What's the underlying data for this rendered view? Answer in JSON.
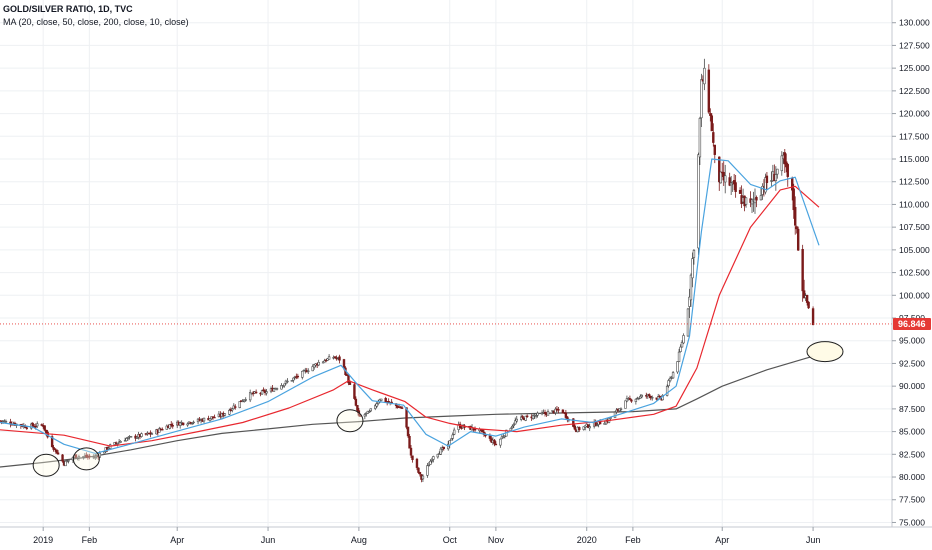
{
  "legend": {
    "title": "GOLD/SILVER RATIO, 1D, TVC",
    "ma_label": "MA (20, close, 50, close, 200, close, 10, close)"
  },
  "colors": {
    "candle_up": "#4a4a4a",
    "candle_down": "#7a1a1a",
    "ma20": "#4aa3df",
    "ma50": "#e8282f",
    "ma200": "#555555",
    "price_line": "#e53935",
    "price_badge": "#e53935",
    "circle_stroke": "#1f1f1f",
    "circle_fill": "#fffbe6",
    "grid": "#eef0f3"
  },
  "chart_data": {
    "type": "line",
    "title": "GOLD/SILVER RATIO, 1D, TVC",
    "ylim": [
      74.5,
      132.5
    ],
    "y_ticks": [
      "75.000",
      "77.500",
      "80.000",
      "82.500",
      "85.000",
      "87.500",
      "90.000",
      "92.500",
      "95.000",
      "97.500",
      "100.000",
      "102.500",
      "105.000",
      "107.500",
      "110.000",
      "112.500",
      "115.000",
      "117.500",
      "120.000",
      "122.500",
      "125.000",
      "127.500",
      "130.000"
    ],
    "x_tick_labels": [
      "2019",
      "Feb",
      "Apr",
      "Jun",
      "Aug",
      "Oct",
      "Nov",
      "2020",
      "Feb",
      "Apr",
      "Jun"
    ],
    "x_tick_dates": [
      "2019-01-01",
      "2019-02-01",
      "2019-04-01",
      "2019-06-01",
      "2019-08-01",
      "2019-10-01",
      "2019-11-01",
      "2020-01-01",
      "2020-02-01",
      "2020-04-01",
      "2020-06-01"
    ],
    "x_range": [
      "2018-12-03",
      "2020-07-24"
    ],
    "last_price": "96.846",
    "last_price_value": 96.846,
    "ohlc_close_path": [
      [
        "2018-12-03",
        86.2
      ],
      [
        "2018-12-20",
        85.6
      ],
      [
        "2019-01-01",
        85.7
      ],
      [
        "2019-01-05",
        84.0
      ],
      [
        "2019-01-15",
        81.5
      ],
      [
        "2019-01-22",
        82.3
      ],
      [
        "2019-02-05",
        82.2
      ],
      [
        "2019-02-15",
        83.4
      ],
      [
        "2019-02-25",
        84.2
      ],
      [
        "2019-03-15",
        84.8
      ],
      [
        "2019-03-28",
        85.8
      ],
      [
        "2019-04-15",
        86.2
      ],
      [
        "2019-05-01",
        86.8
      ],
      [
        "2019-05-20",
        89.1
      ],
      [
        "2019-06-01",
        89.4
      ],
      [
        "2019-06-20",
        91.0
      ],
      [
        "2019-07-05",
        92.6
      ],
      [
        "2019-07-15",
        93.2
      ],
      [
        "2019-07-20",
        92.9
      ],
      [
        "2019-07-28",
        89.1
      ],
      [
        "2019-08-01",
        86.6
      ],
      [
        "2019-08-08",
        87.1
      ],
      [
        "2019-08-15",
        88.6
      ],
      [
        "2019-08-31",
        87.5
      ],
      [
        "2019-09-05",
        82.3
      ],
      [
        "2019-09-12",
        79.8
      ],
      [
        "2019-09-20",
        82.4
      ],
      [
        "2019-09-30",
        83.4
      ],
      [
        "2019-10-05",
        85.7
      ],
      [
        "2019-10-20",
        85.2
      ],
      [
        "2019-11-01",
        83.6
      ],
      [
        "2019-11-15",
        86.3
      ],
      [
        "2019-12-01",
        86.9
      ],
      [
        "2019-12-15",
        87.4
      ],
      [
        "2019-12-25",
        85.2
      ],
      [
        "2020-01-01",
        85.6
      ],
      [
        "2020-01-15",
        86.2
      ],
      [
        "2020-01-28",
        88.4
      ],
      [
        "2020-02-10",
        89.0
      ],
      [
        "2020-02-20",
        88.6
      ],
      [
        "2020-03-01",
        92.2
      ],
      [
        "2020-03-08",
        96.9
      ],
      [
        "2020-03-14",
        107.4
      ],
      [
        "2020-03-18",
        123.2
      ],
      [
        "2020-03-20",
        124.2
      ],
      [
        "2020-03-25",
        118.4
      ],
      [
        "2020-03-28",
        113.0
      ],
      [
        "2020-04-05",
        112.5
      ],
      [
        "2020-04-12",
        110.9
      ],
      [
        "2020-04-20",
        109.8
      ],
      [
        "2020-04-28",
        112.0
      ],
      [
        "2020-05-05",
        113.0
      ],
      [
        "2020-05-12",
        114.8
      ],
      [
        "2020-05-18",
        111.0
      ],
      [
        "2020-05-22",
        105.5
      ],
      [
        "2020-05-25",
        100.9
      ],
      [
        "2020-05-28",
        99.2
      ],
      [
        "2020-06-01",
        96.846
      ]
    ],
    "series": [
      {
        "name": "MA 20",
        "points": [
          [
            "2018-12-03",
            86.0
          ],
          [
            "2018-12-25",
            85.5
          ],
          [
            "2019-01-15",
            83.6
          ],
          [
            "2019-02-05",
            82.6
          ],
          [
            "2019-02-28",
            83.6
          ],
          [
            "2019-03-31",
            85.0
          ],
          [
            "2019-05-01",
            86.4
          ],
          [
            "2019-06-01",
            88.3
          ],
          [
            "2019-07-01",
            91.0
          ],
          [
            "2019-07-20",
            92.3
          ],
          [
            "2019-08-01",
            90.0
          ],
          [
            "2019-08-10",
            88.4
          ],
          [
            "2019-08-31",
            87.9
          ],
          [
            "2019-09-15",
            84.7
          ],
          [
            "2019-09-30",
            83.4
          ],
          [
            "2019-10-15",
            85.0
          ],
          [
            "2019-11-01",
            84.5
          ],
          [
            "2019-11-20",
            85.5
          ],
          [
            "2019-12-15",
            86.4
          ],
          [
            "2020-01-05",
            86.0
          ],
          [
            "2020-01-25",
            87.0
          ],
          [
            "2020-02-15",
            88.1
          ],
          [
            "2020-03-01",
            90.0
          ],
          [
            "2020-03-10",
            95.5
          ],
          [
            "2020-03-18",
            107.0
          ],
          [
            "2020-03-25",
            115.0
          ],
          [
            "2020-04-05",
            114.8
          ],
          [
            "2020-04-20",
            112.2
          ],
          [
            "2020-05-01",
            111.6
          ],
          [
            "2020-05-10",
            112.6
          ],
          [
            "2020-05-20",
            113.0
          ],
          [
            "2020-06-05",
            105.5
          ]
        ]
      },
      {
        "name": "MA 50",
        "points": [
          [
            "2018-12-03",
            85.2
          ],
          [
            "2019-01-15",
            84.6
          ],
          [
            "2019-02-15",
            83.4
          ],
          [
            "2019-03-15",
            84.0
          ],
          [
            "2019-04-15",
            85.0
          ],
          [
            "2019-05-15",
            86.0
          ],
          [
            "2019-06-15",
            87.6
          ],
          [
            "2019-07-15",
            89.6
          ],
          [
            "2019-07-25",
            90.6
          ],
          [
            "2019-08-10",
            89.6
          ],
          [
            "2019-09-01",
            88.3
          ],
          [
            "2019-09-15",
            86.6
          ],
          [
            "2019-10-01",
            85.9
          ],
          [
            "2019-10-20",
            85.3
          ],
          [
            "2019-11-15",
            85.0
          ],
          [
            "2019-12-15",
            85.7
          ],
          [
            "2020-01-15",
            86.2
          ],
          [
            "2020-02-15",
            86.9
          ],
          [
            "2020-03-01",
            87.8
          ],
          [
            "2020-03-15",
            92.0
          ],
          [
            "2020-03-30",
            100.0
          ],
          [
            "2020-04-20",
            107.5
          ],
          [
            "2020-05-10",
            111.6
          ],
          [
            "2020-05-20",
            112.0
          ],
          [
            "2020-06-05",
            109.7
          ]
        ]
      },
      {
        "name": "MA 200",
        "points": [
          [
            "2018-12-03",
            81.1
          ],
          [
            "2019-01-01",
            81.6
          ],
          [
            "2019-02-01",
            82.2
          ],
          [
            "2019-03-01",
            83.0
          ],
          [
            "2019-04-01",
            84.0
          ],
          [
            "2019-05-01",
            84.8
          ],
          [
            "2019-06-01",
            85.3
          ],
          [
            "2019-07-01",
            85.8
          ],
          [
            "2019-08-01",
            86.1
          ],
          [
            "2019-09-01",
            86.5
          ],
          [
            "2019-10-01",
            86.7
          ],
          [
            "2019-11-01",
            86.9
          ],
          [
            "2019-12-01",
            87.0
          ],
          [
            "2020-01-01",
            87.1
          ],
          [
            "2020-02-01",
            87.2
          ],
          [
            "2020-03-01",
            87.5
          ],
          [
            "2020-03-15",
            88.6
          ],
          [
            "2020-04-01",
            90.0
          ],
          [
            "2020-05-01",
            91.8
          ],
          [
            "2020-06-01",
            93.3
          ]
        ]
      }
    ],
    "annotations": [
      {
        "shape": "ellipse",
        "date": "2019-01-03",
        "value": 81.3
      },
      {
        "shape": "ellipse",
        "date": "2019-01-30",
        "value": 82.0
      },
      {
        "shape": "ellipse",
        "date": "2019-07-26",
        "value": 86.2
      },
      {
        "shape": "ellipse",
        "date": "2020-06-09",
        "value": 93.8
      }
    ]
  }
}
